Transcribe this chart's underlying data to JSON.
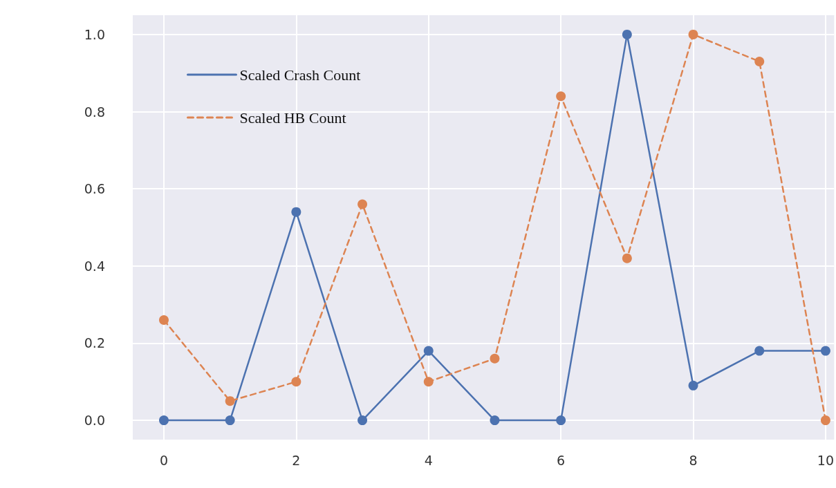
{
  "chart_data": {
    "type": "line",
    "x": [
      0,
      1,
      2,
      3,
      4,
      5,
      6,
      7,
      8,
      9,
      10
    ],
    "series": [
      {
        "name": "Scaled Crash Count",
        "color": "#4c72b0",
        "line_style": "solid",
        "values": [
          0,
          0,
          0.54,
          0,
          0.18,
          0,
          0,
          1.0,
          0.09,
          0.18,
          0.18
        ]
      },
      {
        "name": "Scaled HB Count",
        "color": "#dd8452",
        "line_style": "dashed",
        "values": [
          0.26,
          0.05,
          0.1,
          0.56,
          0.1,
          0.16,
          0.84,
          0.42,
          1.0,
          0.93,
          0
        ]
      }
    ],
    "xlim": [
      -0.47,
      10.13
    ],
    "xticks": [
      0,
      2,
      4,
      6,
      8,
      10
    ],
    "ylim": [
      -0.05,
      1.05
    ],
    "yticks": [
      {
        "value": 0,
        "label": "0.0"
      },
      {
        "value": 0.2,
        "label": "0.2"
      },
      {
        "value": 0.4,
        "label": "0.4"
      },
      {
        "value": 0.6,
        "label": "0.6"
      },
      {
        "value": 0.8,
        "label": "0.8"
      },
      {
        "value": 1,
        "label": "1.0"
      }
    ],
    "grid": true,
    "legend": "top left",
    "marker": "circle"
  }
}
